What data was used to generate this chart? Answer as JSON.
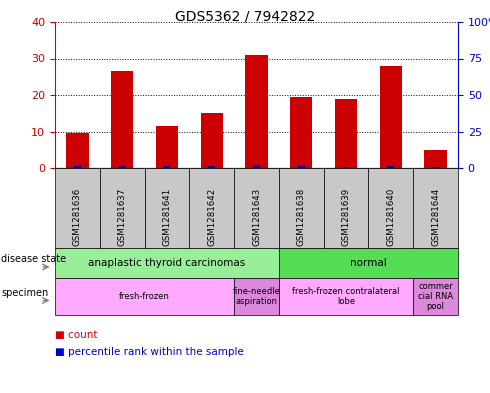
{
  "title": "GDS5362 / 7942822",
  "samples": [
    "GSM1281636",
    "GSM1281637",
    "GSM1281641",
    "GSM1281642",
    "GSM1281643",
    "GSM1281638",
    "GSM1281639",
    "GSM1281640",
    "GSM1281644"
  ],
  "count_values": [
    9.5,
    26.5,
    11.5,
    15,
    31,
    19.5,
    19,
    28,
    5
  ],
  "percentile_values": [
    1.2,
    1.2,
    1.2,
    1.5,
    2.0,
    1.2,
    1.0,
    1.2,
    0.8
  ],
  "ylim_left": [
    0,
    40
  ],
  "ylim_right": [
    0,
    100
  ],
  "yticks_left": [
    0,
    10,
    20,
    30,
    40
  ],
  "yticks_right": [
    0,
    25,
    50,
    75,
    100
  ],
  "ytick_labels_left": [
    "0",
    "10",
    "20",
    "30",
    "40"
  ],
  "ytick_labels_right": [
    "0",
    "25",
    "50",
    "75",
    "100%"
  ],
  "left_color": "#cc0000",
  "right_color": "#0000cc",
  "bar_width": 0.5,
  "pct_bar_width": 0.15,
  "tick_area_bg": "#c8c8c8",
  "disease_draw": [
    {
      "label": "anaplastic thyroid carcinomas",
      "start": 0,
      "end": 5,
      "color": "#99ee99"
    },
    {
      "label": "normal",
      "start": 5,
      "end": 9,
      "color": "#55dd55"
    }
  ],
  "specimen_groups": [
    {
      "label": "fresh-frozen",
      "start": 0,
      "end": 4,
      "color": "#ffaaff"
    },
    {
      "label": "fine-needle\naspiration",
      "start": 4,
      "end": 5,
      "color": "#dd88dd"
    },
    {
      "label": "fresh-frozen contralateral\nlobe",
      "start": 5,
      "end": 8,
      "color": "#ffaaff"
    },
    {
      "label": "commer\ncial RNA\npool",
      "start": 8,
      "end": 9,
      "color": "#dd88dd"
    }
  ],
  "legend_count_color": "#cc0000",
  "legend_percentile_color": "#0000cc"
}
